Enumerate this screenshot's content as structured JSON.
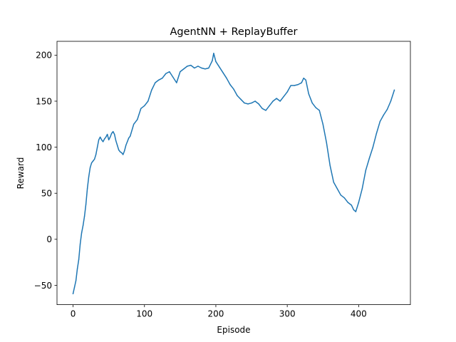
{
  "chart_data": {
    "type": "line",
    "title": "AgentNN + ReplayBuffer",
    "xlabel": "Episode",
    "ylabel": "Reward",
    "xlim": [
      -22.5,
      472.5
    ],
    "ylim": [
      -71,
      215
    ],
    "x_ticks": [
      0,
      100,
      200,
      300,
      400
    ],
    "y_ticks": [
      -50,
      0,
      50,
      100,
      150,
      200
    ],
    "grid": false,
    "line_color": "#1f77b4",
    "series": [
      {
        "x": [
          0,
          2,
          4,
          6,
          8,
          10,
          12,
          14,
          16,
          18,
          20,
          22,
          24,
          26,
          28,
          30,
          32,
          34,
          36,
          38,
          40,
          42,
          44,
          46,
          48,
          50,
          52,
          54,
          56,
          58,
          60,
          62,
          64,
          66,
          68,
          70,
          72,
          74,
          76,
          78,
          80,
          85,
          90,
          95,
          100,
          105,
          110,
          115,
          120,
          125,
          130,
          135,
          140,
          145,
          150,
          155,
          160,
          165,
          170,
          175,
          180,
          185,
          190,
          195,
          197,
          200,
          205,
          210,
          215,
          220,
          225,
          230,
          235,
          240,
          245,
          250,
          255,
          260,
          265,
          270,
          275,
          280,
          285,
          290,
          295,
          300,
          305,
          310,
          315,
          320,
          323,
          326,
          330,
          335,
          340,
          345,
          350,
          355,
          360,
          365,
          370,
          375,
          380,
          385,
          390,
          393,
          396,
          400,
          405,
          410,
          415,
          420,
          425,
          430,
          435,
          440,
          445,
          450
        ],
        "values": [
          -59,
          -52,
          -45,
          -32,
          -22,
          -5,
          7,
          15,
          25,
          38,
          55,
          68,
          78,
          83,
          85,
          87,
          92,
          100,
          108,
          111,
          108,
          106,
          109,
          111,
          114,
          108,
          111,
          115,
          117,
          114,
          107,
          102,
          97,
          95,
          94,
          92,
          96,
          102,
          106,
          110,
          112,
          125,
          130,
          142,
          145,
          150,
          162,
          170,
          173,
          175,
          180,
          182,
          176,
          170,
          182,
          185,
          188,
          189,
          186,
          188,
          186,
          185,
          186,
          194,
          202,
          193,
          187,
          181,
          175,
          168,
          163,
          156,
          152,
          148,
          147,
          148,
          150,
          147,
          142,
          140,
          145,
          150,
          153,
          150,
          155,
          160,
          167,
          167,
          168,
          170,
          175,
          173,
          158,
          148,
          143,
          140,
          125,
          105,
          80,
          62,
          55,
          48,
          45,
          40,
          37,
          32,
          30,
          40,
          55,
          75,
          88,
          100,
          115,
          128,
          135,
          141,
          150,
          162
        ]
      }
    ]
  }
}
